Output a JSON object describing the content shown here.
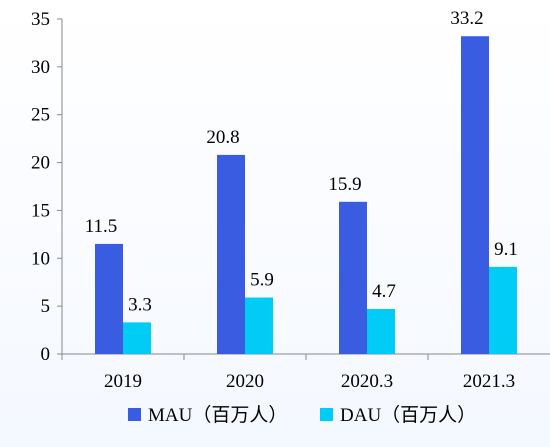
{
  "chart_data": {
    "type": "bar",
    "categories": [
      "2019",
      "2020",
      "2020.3",
      "2021.3"
    ],
    "series": [
      {
        "name": "MAU（百万人）",
        "values": [
          11.5,
          20.8,
          15.9,
          33.2
        ],
        "color": "#3a5ce0"
      },
      {
        "name": "DAU（百万人）",
        "values": [
          3.3,
          5.9,
          4.7,
          9.1
        ],
        "color": "#00ccf5"
      }
    ],
    "ylim": [
      0,
      35
    ],
    "yticks": [
      "0",
      "5",
      "10",
      "15",
      "20",
      "25",
      "30",
      "35"
    ],
    "legend": "bottom",
    "grid": false
  }
}
